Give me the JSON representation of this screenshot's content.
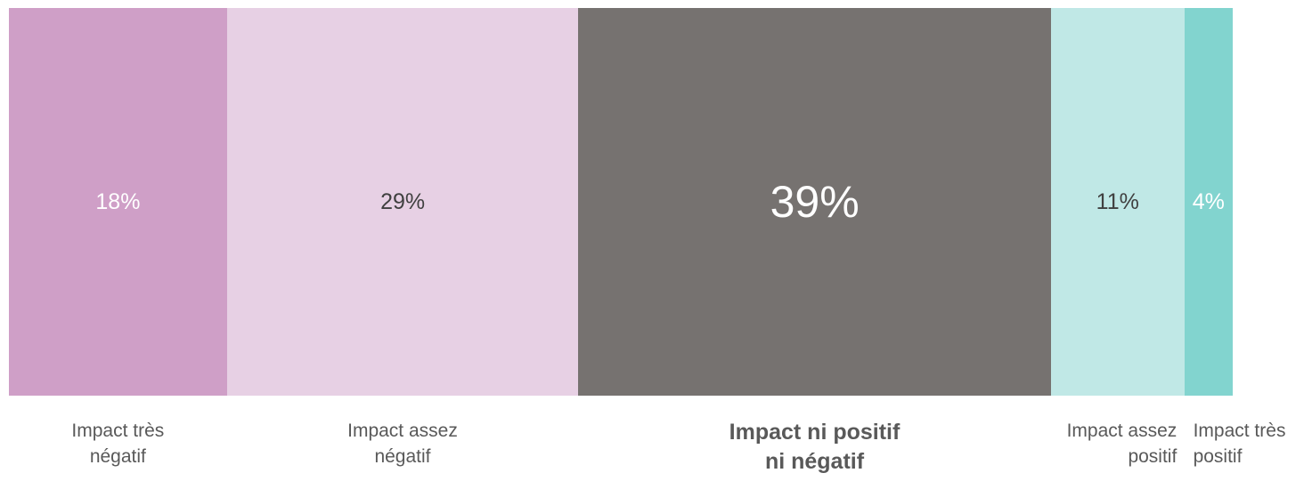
{
  "chart_data": {
    "type": "bar",
    "orientation": "horizontal-stacked-100",
    "categories": [
      "Impact très négatif",
      "Impact assez négatif",
      "Impact ni positif ni négatif",
      "Impact assez positif",
      "Impact très positif"
    ],
    "values": [
      18,
      29,
      39,
      11,
      4
    ],
    "unit": "%",
    "value_labels": [
      "18%",
      "29%",
      "39%",
      "11%",
      "4%"
    ],
    "label_lines": [
      [
        "Impact très",
        "négatif"
      ],
      [
        "Impact assez",
        "négatif"
      ],
      [
        "Impact ni positif",
        "ni négatif"
      ],
      [
        "Impact assez",
        "positif"
      ],
      [
        "Impact très",
        "positif"
      ]
    ],
    "colors": [
      "#cf9fc7",
      "#e7d0e4",
      "#767270",
      "#c0e8e6",
      "#82d4cf"
    ],
    "value_text_colors": [
      "#ffffff",
      "#404040",
      "#ffffff",
      "#404040",
      "#ffffff"
    ],
    "emphasized_index": 2,
    "title": "",
    "xlabel": "",
    "ylabel": "",
    "grid": false,
    "legend": "none"
  }
}
